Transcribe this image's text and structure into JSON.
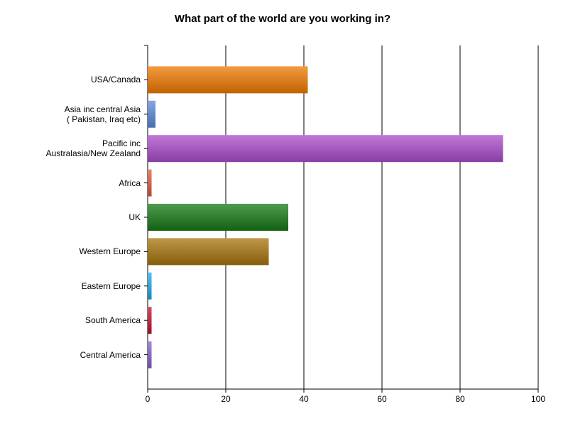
{
  "chart_data": {
    "type": "bar",
    "orientation": "horizontal",
    "title": "What part of the world are you working in?",
    "categories": [
      "USA/Canada",
      "Asia inc central Asia\n( Pakistan, Iraq etc)",
      "Pacific inc\nAustralasia/New Zealand",
      "Africa",
      "UK",
      "Western Europe",
      "Eastern Europe",
      "South America",
      "Central America"
    ],
    "values": [
      41,
      2,
      91,
      1,
      36,
      31,
      1,
      1,
      1
    ],
    "colors": [
      "#f07a00",
      "#5a8ad8",
      "#ab4ccb",
      "#e05a3e",
      "#167a16",
      "#a8740c",
      "#1ea8ea",
      "#c4102c",
      "#8462ca"
    ],
    "xlim": [
      0,
      100
    ],
    "xticks": [
      0,
      20,
      40,
      60,
      80,
      100
    ],
    "grid": true
  }
}
